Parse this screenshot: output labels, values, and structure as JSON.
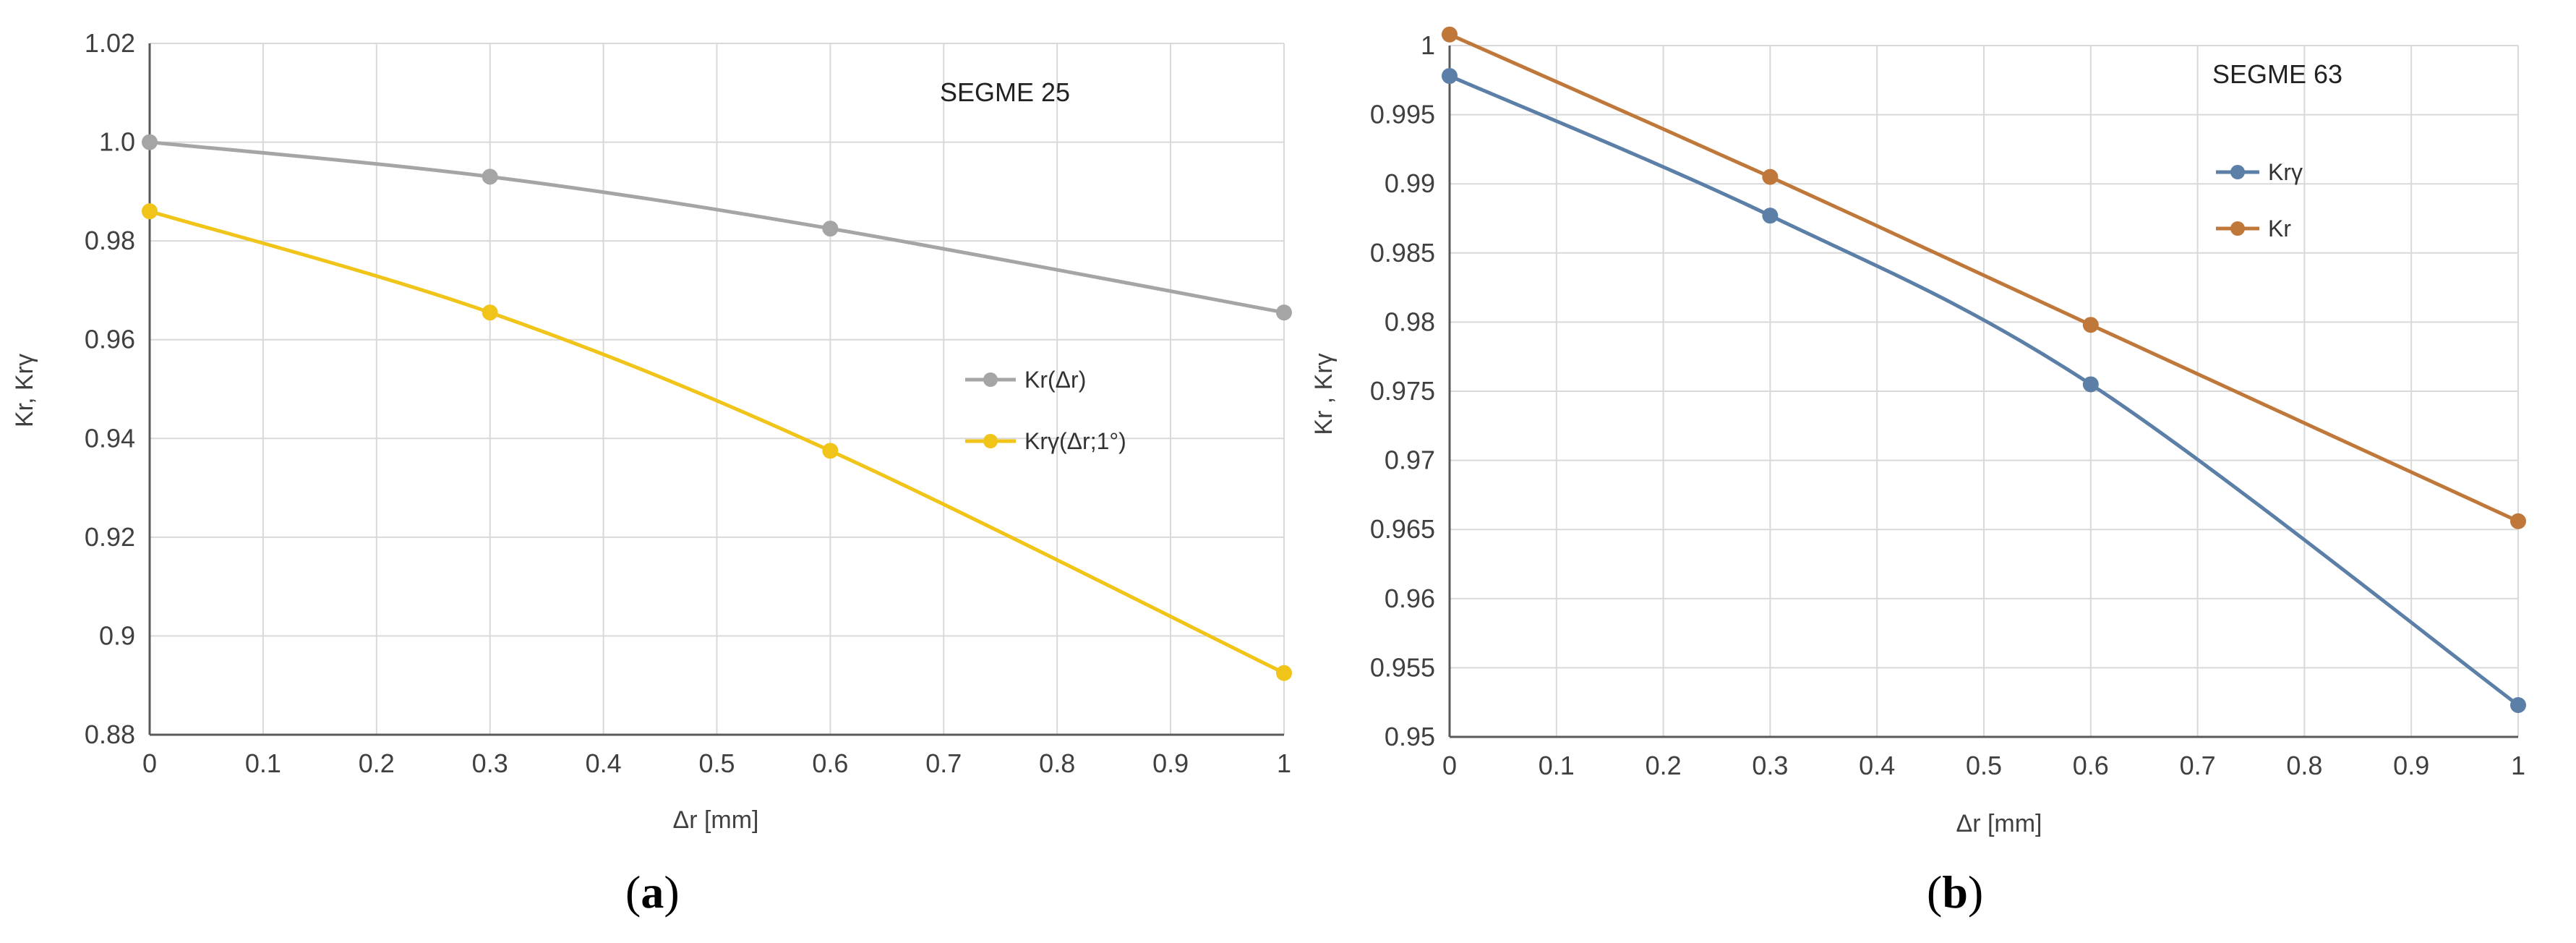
{
  "chart_data": [
    {
      "type": "line",
      "panel": "(a)",
      "panel_letter": "a",
      "annotation": "SEGME 25",
      "xlabel": "Δr [mm]",
      "ylabel": "Kr, Krγ",
      "xlim": [
        0,
        1
      ],
      "ylim": [
        0.88,
        1.02
      ],
      "x_ticks": [
        "0",
        "0.1",
        "0.2",
        "0.3",
        "0.4",
        "0.5",
        "0.6",
        "0.7",
        "0.8",
        "0.9",
        "1"
      ],
      "y_ticks": [
        "0.88",
        "0.9",
        "0.92",
        "0.94",
        "0.96",
        "0.98",
        "1.0",
        "1.02"
      ],
      "grid": true,
      "legend_position": "center-right",
      "series": [
        {
          "name": "Kr(Δr)",
          "color": "#a5a5a5",
          "x": [
            0,
            0.3,
            0.6,
            1
          ],
          "values": [
            1.0,
            0.993,
            0.9825,
            0.9655
          ]
        },
        {
          "name": "Krγ(Δr;1°)",
          "color": "#f0c419",
          "x": [
            0,
            0.3,
            0.6,
            1
          ],
          "values": [
            0.986,
            0.9655,
            0.9375,
            0.8925
          ]
        }
      ]
    },
    {
      "type": "line",
      "panel": "(b)",
      "panel_letter": "b",
      "annotation": "SEGME 63",
      "xlabel": "Δr [mm]",
      "ylabel": "Kr , Krγ",
      "xlim": [
        0,
        1
      ],
      "ylim": [
        0.95,
        1.0
      ],
      "x_ticks": [
        "0",
        "0.1",
        "0.2",
        "0.3",
        "0.4",
        "0.5",
        "0.6",
        "0.7",
        "0.8",
        "0.9",
        "1"
      ],
      "y_ticks": [
        "0.95",
        "0.955",
        "0.96",
        "0.965",
        "0.97",
        "0.975",
        "0.98",
        "0.985",
        "0.99",
        "0.995",
        "1"
      ],
      "grid": true,
      "legend_position": "top-right",
      "series": [
        {
          "name": "Krγ",
          "color": "#5b7fa6",
          "x": [
            0,
            0.3,
            0.6,
            1
          ],
          "values": [
            0.9978,
            0.9877,
            0.9755,
            0.9523
          ]
        },
        {
          "name": "Kr",
          "color": "#c0783a",
          "x": [
            0,
            0.3,
            0.6,
            1
          ],
          "values": [
            1.0008,
            0.9905,
            0.9798,
            0.9656
          ]
        }
      ]
    }
  ]
}
